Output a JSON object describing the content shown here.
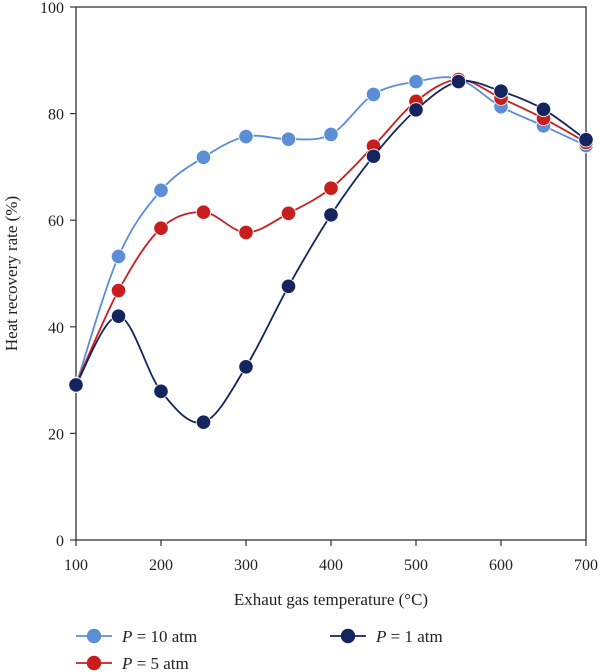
{
  "chart_data": {
    "type": "line",
    "xlabel": "Exhaut gas temperature (°C)",
    "ylabel": "Heat recovery rate (%)",
    "xlim": [
      100,
      700
    ],
    "ylim": [
      0,
      100
    ],
    "xticks": [
      100,
      200,
      300,
      400,
      500,
      600,
      700
    ],
    "yticks": [
      0,
      20,
      40,
      60,
      80,
      100
    ],
    "grid": false,
    "legend_position": "bottom",
    "x": [
      100,
      150,
      200,
      250,
      300,
      350,
      400,
      450,
      500,
      550,
      600,
      650,
      700
    ],
    "series": [
      {
        "name": "P = 10 atm",
        "name_var": "P",
        "name_rest": " = 10 atm",
        "color": "#5b8ed6",
        "values": [
          29.0,
          53.2,
          65.6,
          71.8,
          75.7,
          75.2,
          76.1,
          83.6,
          86.0,
          86.5,
          81.3,
          77.7,
          74.0
        ]
      },
      {
        "name": "P = 5 atm",
        "name_var": "P",
        "name_rest": " = 5 atm",
        "color": "#c81e1e",
        "values": [
          29.2,
          46.8,
          58.5,
          61.5,
          57.7,
          61.3,
          66.0,
          73.9,
          82.3,
          86.4,
          82.9,
          79.1,
          74.6
        ]
      },
      {
        "name": "P = 1 atm",
        "name_var": "P",
        "name_rest": " = 1 atm",
        "color": "#13245e",
        "values": [
          29.1,
          42.0,
          27.9,
          22.1,
          32.5,
          47.6,
          61.0,
          72.0,
          80.7,
          86.0,
          84.2,
          80.8,
          75.1
        ]
      }
    ]
  }
}
